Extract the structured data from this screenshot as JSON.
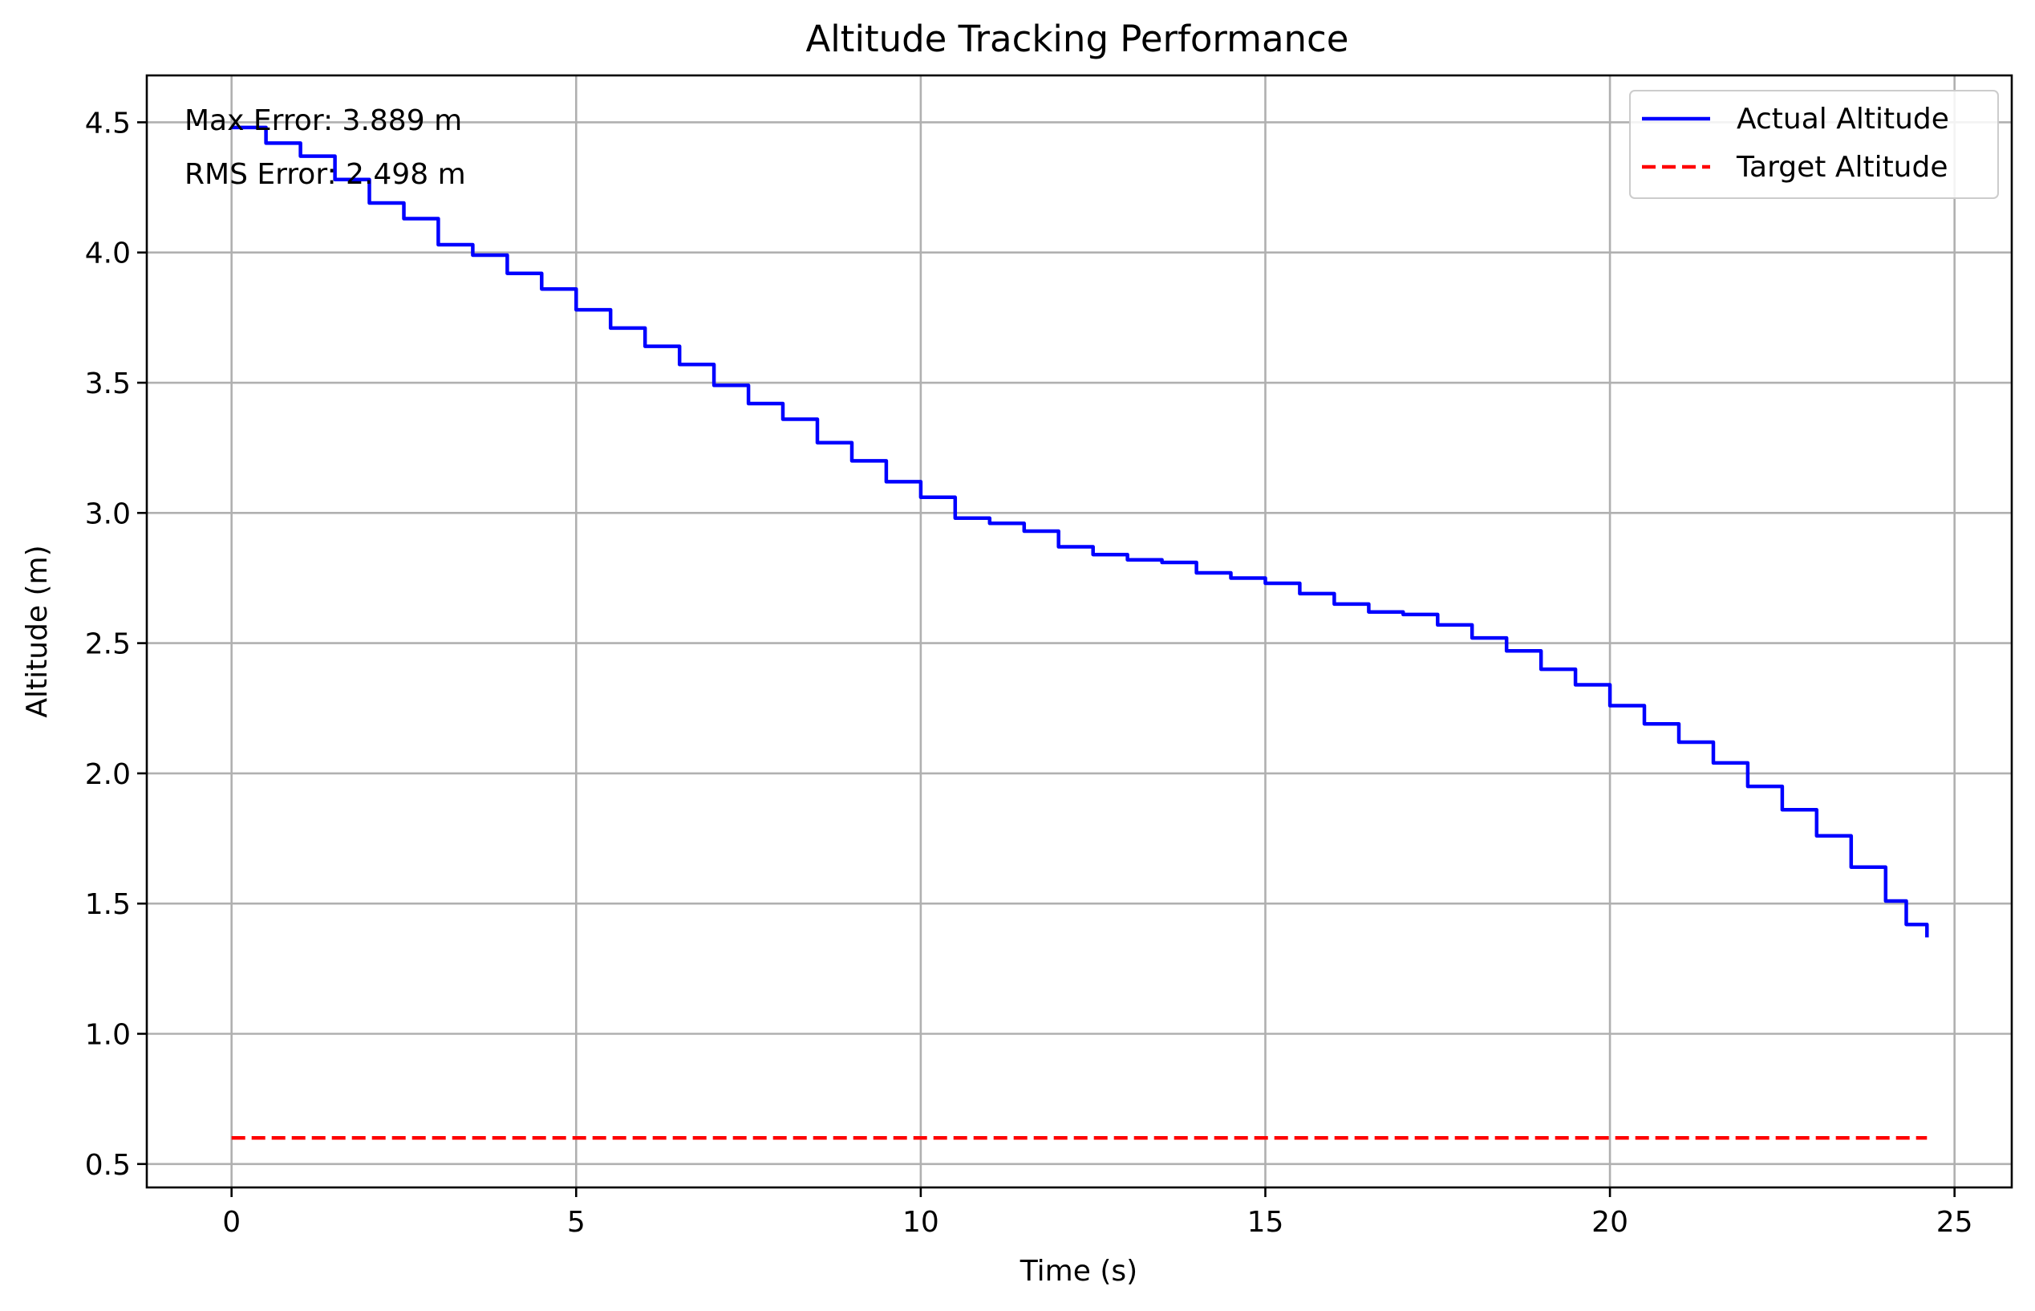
{
  "chart_data": {
    "type": "line",
    "title": "Altitude Tracking Performance",
    "xlabel": "Time (s)",
    "ylabel": "Altitude (m)",
    "xlim": [
      -1.23,
      25.83
    ],
    "ylim": [
      0.41,
      4.68
    ],
    "xticks": [
      0,
      5,
      10,
      15,
      20,
      25
    ],
    "yticks": [
      0.5,
      1.0,
      1.5,
      2.0,
      2.5,
      3.0,
      3.5,
      4.0,
      4.5
    ],
    "xtick_labels": [
      "0",
      "5",
      "10",
      "15",
      "20",
      "25"
    ],
    "ytick_labels": [
      "0.5",
      "1.0",
      "1.5",
      "2.0",
      "2.5",
      "3.0",
      "3.5",
      "4.0",
      "4.5"
    ],
    "grid": true,
    "legend_position": "top-right",
    "annotations": [
      "Max Error: 3.889 m",
      "RMS Error: 2.498 m"
    ],
    "series": [
      {
        "name": "Actual Altitude",
        "color": "#0000ff",
        "style": "solid",
        "x": [
          0,
          0.5,
          1.0,
          1.5,
          2.0,
          2.5,
          3.0,
          3.5,
          4.0,
          4.5,
          5.0,
          5.5,
          6.0,
          6.5,
          7.0,
          7.5,
          8.0,
          8.5,
          9.0,
          9.5,
          10.0,
          10.5,
          11.0,
          11.5,
          12.0,
          12.5,
          13.0,
          13.5,
          14.0,
          14.5,
          15.0,
          15.5,
          16.0,
          16.5,
          17.0,
          17.5,
          18.0,
          18.5,
          19.0,
          19.5,
          20.0,
          20.5,
          21.0,
          21.5,
          22.0,
          22.5,
          23.0,
          23.5,
          24.0,
          24.3,
          24.6
        ],
        "y": [
          4.48,
          4.42,
          4.37,
          4.28,
          4.19,
          4.13,
          4.03,
          3.99,
          3.92,
          3.86,
          3.78,
          3.71,
          3.64,
          3.57,
          3.49,
          3.42,
          3.36,
          3.27,
          3.2,
          3.12,
          3.06,
          2.98,
          2.96,
          2.93,
          2.87,
          2.84,
          2.82,
          2.81,
          2.77,
          2.75,
          2.73,
          2.69,
          2.65,
          2.62,
          2.61,
          2.57,
          2.52,
          2.47,
          2.4,
          2.34,
          2.26,
          2.19,
          2.12,
          2.04,
          1.95,
          1.86,
          1.76,
          1.64,
          1.51,
          1.42,
          1.37
        ]
      },
      {
        "name": "Target Altitude",
        "color": "#ff0000",
        "style": "dashed",
        "x": [
          0,
          24.6
        ],
        "y": [
          0.6,
          0.6
        ]
      }
    ]
  }
}
